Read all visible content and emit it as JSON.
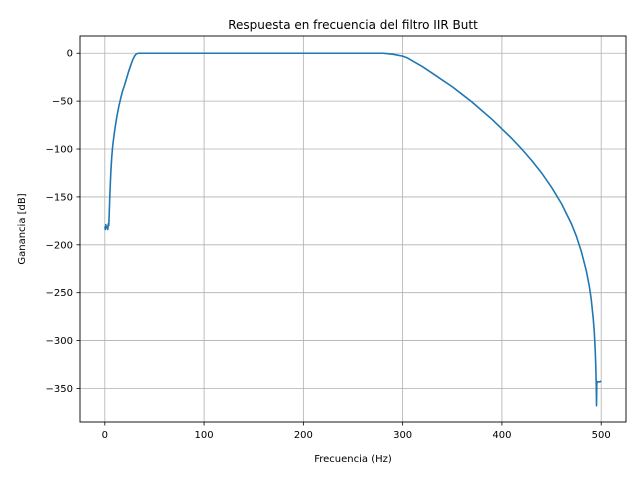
{
  "chart_data": {
    "type": "line",
    "title": "Respuesta en frecuencia del filtro IIR Butt",
    "xlabel": "Frecuencia (Hz)",
    "ylabel": "Ganancia [dB]",
    "xlim": [
      -25,
      525
    ],
    "ylim": [
      -385,
      18
    ],
    "grid": true,
    "x_ticks": [
      0,
      100,
      200,
      300,
      400,
      500
    ],
    "y_ticks": [
      0,
      -50,
      -100,
      -150,
      -200,
      -250,
      -300,
      -350
    ],
    "x_tick_labels": [
      "0",
      "100",
      "200",
      "300",
      "400",
      "500"
    ],
    "y_tick_labels": [
      "0",
      "−50",
      "−100",
      "−150",
      "−200",
      "−250",
      "−300",
      "−350"
    ],
    "series": [
      {
        "color": "#1f77b4",
        "x": [
          0,
          0.5,
          1,
          1.5,
          2,
          2.5,
          3,
          3.5,
          4,
          5,
          6,
          7,
          8,
          10,
          12,
          14,
          16,
          18,
          20,
          22,
          24,
          26,
          28,
          30,
          31,
          32,
          34,
          40,
          60,
          100,
          150,
          200,
          250,
          280,
          285,
          290,
          295,
          300,
          305,
          310,
          320,
          330,
          340,
          350,
          360,
          370,
          380,
          390,
          400,
          410,
          420,
          430,
          440,
          450,
          460,
          470,
          475,
          480,
          485,
          488,
          490,
          492,
          493,
          494,
          494.5,
          495,
          495.3,
          495.6,
          496,
          497,
          498,
          499,
          500
        ],
        "y": [
          -181,
          -184,
          -179,
          -182,
          -181,
          -183,
          -184,
          -178,
          -180,
          -150,
          -125,
          -108,
          -96,
          -80,
          -67,
          -56,
          -47,
          -39,
          -33,
          -26,
          -19,
          -13,
          -7,
          -3,
          -1.5,
          -0.5,
          0,
          0,
          0,
          0,
          0,
          0,
          0,
          0,
          -0.5,
          -1,
          -2,
          -3,
          -5,
          -8,
          -14,
          -21,
          -28,
          -35,
          -43,
          -51,
          -60,
          -69,
          -79,
          -89,
          -100,
          -112,
          -125,
          -140,
          -157,
          -178,
          -191,
          -207,
          -227,
          -243,
          -257,
          -277,
          -290,
          -310,
          -325,
          -345,
          -368,
          -345,
          -343,
          -343,
          -343,
          -343,
          -342
        ]
      }
    ]
  }
}
